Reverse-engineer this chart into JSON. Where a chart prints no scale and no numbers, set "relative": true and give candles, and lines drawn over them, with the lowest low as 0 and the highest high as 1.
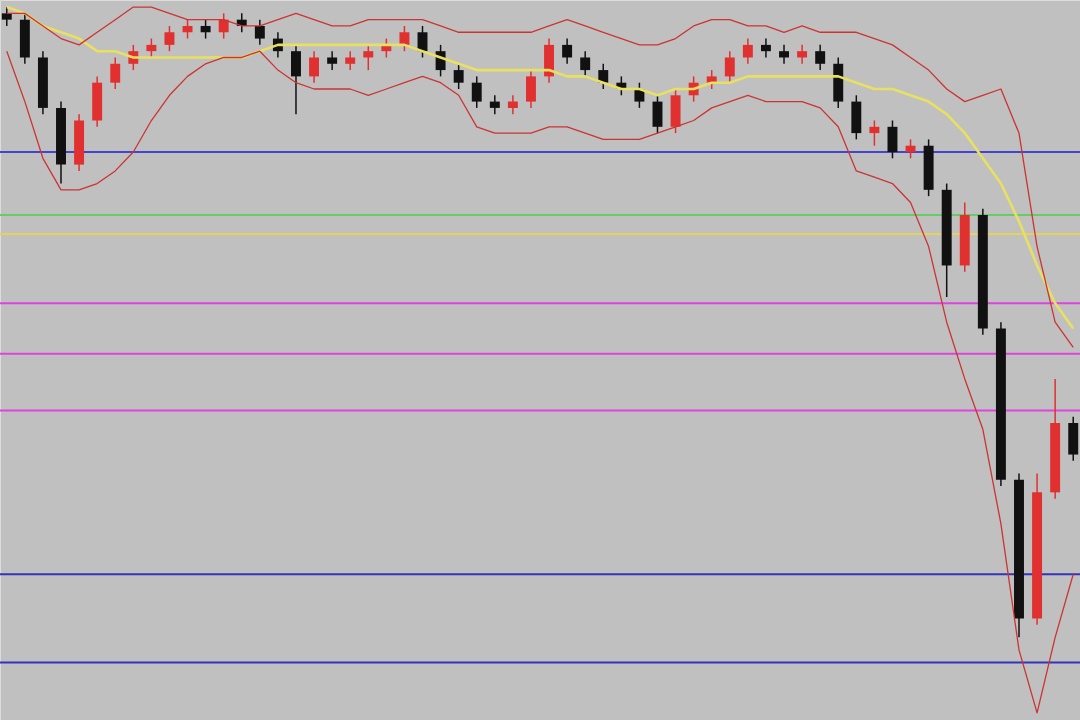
{
  "chart_data": {
    "type": "candlestick",
    "relative": true,
    "categories": [
      null,
      null,
      null,
      null,
      null,
      null,
      null,
      null,
      null,
      null,
      null,
      null,
      null,
      null,
      null,
      null,
      null,
      null,
      null,
      null,
      null,
      null,
      null,
      null,
      null,
      null,
      null,
      null,
      null,
      null,
      null,
      null,
      null,
      null,
      null,
      null,
      null,
      null,
      null,
      null,
      null,
      null,
      null,
      null,
      null,
      null,
      null,
      null,
      null,
      null,
      null,
      null,
      null,
      null,
      null,
      null,
      null,
      null,
      null,
      null
    ],
    "ohlc": [
      [
        0.99,
        1.0,
        0.97,
        0.98
      ],
      [
        0.98,
        0.99,
        0.91,
        0.92
      ],
      [
        0.92,
        0.93,
        0.83,
        0.84
      ],
      [
        0.84,
        0.85,
        0.72,
        0.75
      ],
      [
        0.75,
        0.83,
        0.74,
        0.82
      ],
      [
        0.82,
        0.89,
        0.81,
        0.88
      ],
      [
        0.88,
        0.92,
        0.87,
        0.91
      ],
      [
        0.91,
        0.94,
        0.9,
        0.93
      ],
      [
        0.93,
        0.95,
        0.92,
        0.94
      ],
      [
        0.94,
        0.97,
        0.93,
        0.96
      ],
      [
        0.96,
        0.98,
        0.95,
        0.97
      ],
      [
        0.97,
        0.98,
        0.95,
        0.96
      ],
      [
        0.96,
        0.99,
        0.95,
        0.98
      ],
      [
        0.98,
        0.99,
        0.96,
        0.97
      ],
      [
        0.97,
        0.98,
        0.94,
        0.95
      ],
      [
        0.95,
        0.96,
        0.92,
        0.93
      ],
      [
        0.93,
        0.94,
        0.83,
        0.89
      ],
      [
        0.89,
        0.93,
        0.88,
        0.92
      ],
      [
        0.92,
        0.93,
        0.9,
        0.91
      ],
      [
        0.91,
        0.93,
        0.9,
        0.92
      ],
      [
        0.92,
        0.94,
        0.9,
        0.93
      ],
      [
        0.93,
        0.95,
        0.92,
        0.94
      ],
      [
        0.94,
        0.97,
        0.93,
        0.96
      ],
      [
        0.96,
        0.97,
        0.92,
        0.93
      ],
      [
        0.93,
        0.94,
        0.89,
        0.9
      ],
      [
        0.9,
        0.91,
        0.87,
        0.88
      ],
      [
        0.88,
        0.89,
        0.84,
        0.85
      ],
      [
        0.85,
        0.86,
        0.83,
        0.84
      ],
      [
        0.84,
        0.86,
        0.83,
        0.85
      ],
      [
        0.85,
        0.9,
        0.84,
        0.89
      ],
      [
        0.89,
        0.95,
        0.88,
        0.94
      ],
      [
        0.94,
        0.95,
        0.91,
        0.92
      ],
      [
        0.92,
        0.93,
        0.89,
        0.9
      ],
      [
        0.9,
        0.91,
        0.87,
        0.88
      ],
      [
        0.88,
        0.89,
        0.86,
        0.87
      ],
      [
        0.87,
        0.88,
        0.84,
        0.85
      ],
      [
        0.85,
        0.86,
        0.8,
        0.81
      ],
      [
        0.81,
        0.87,
        0.8,
        0.86
      ],
      [
        0.86,
        0.89,
        0.85,
        0.88
      ],
      [
        0.88,
        0.9,
        0.87,
        0.89
      ],
      [
        0.89,
        0.93,
        0.88,
        0.92
      ],
      [
        0.92,
        0.95,
        0.91,
        0.94
      ],
      [
        0.94,
        0.95,
        0.92,
        0.93
      ],
      [
        0.93,
        0.94,
        0.91,
        0.92
      ],
      [
        0.92,
        0.94,
        0.91,
        0.93
      ],
      [
        0.93,
        0.94,
        0.9,
        0.91
      ],
      [
        0.91,
        0.92,
        0.84,
        0.85
      ],
      [
        0.85,
        0.86,
        0.79,
        0.8
      ],
      [
        0.8,
        0.82,
        0.78,
        0.81
      ],
      [
        0.81,
        0.82,
        0.76,
        0.77
      ],
      [
        0.77,
        0.79,
        0.76,
        0.78
      ],
      [
        0.78,
        0.79,
        0.7,
        0.71
      ],
      [
        0.71,
        0.72,
        0.54,
        0.59
      ],
      [
        0.59,
        0.69,
        0.58,
        0.67
      ],
      [
        0.67,
        0.68,
        0.48,
        0.49
      ],
      [
        0.49,
        0.5,
        0.24,
        0.25
      ],
      [
        0.25,
        0.26,
        0.0,
        0.03
      ],
      [
        0.03,
        0.26,
        0.02,
        0.23
      ],
      [
        0.23,
        0.41,
        0.22,
        0.34
      ],
      [
        0.34,
        0.35,
        0.28,
        0.29
      ]
    ],
    "colors": [
      "#111111",
      "#111111",
      "#111111",
      "#111111",
      "#e03030",
      "#e03030",
      "#e03030",
      "#e03030",
      "#e03030",
      "#e03030",
      "#e03030",
      "#111111",
      "#e03030",
      "#111111",
      "#111111",
      "#111111",
      "#111111",
      "#e03030",
      "#111111",
      "#e03030",
      "#e03030",
      "#e03030",
      "#e03030",
      "#111111",
      "#111111",
      "#111111",
      "#111111",
      "#111111",
      "#e03030",
      "#e03030",
      "#e03030",
      "#111111",
      "#111111",
      "#111111",
      "#111111",
      "#111111",
      "#111111",
      "#e03030",
      "#e03030",
      "#e03030",
      "#e03030",
      "#e03030",
      "#111111",
      "#111111",
      "#e03030",
      "#111111",
      "#111111",
      "#111111",
      "#e03030",
      "#111111",
      "#e03030",
      "#111111",
      "#111111",
      "#e03030",
      "#111111",
      "#111111",
      "#111111",
      "#e03030",
      "#e03030",
      "#111111"
    ],
    "series": [
      {
        "type": "line",
        "color": "#e8e060",
        "values": [
          1.0,
          0.99,
          0.97,
          0.96,
          0.95,
          0.93,
          0.93,
          0.92,
          0.92,
          0.92,
          0.92,
          0.92,
          0.92,
          0.92,
          0.93,
          0.94,
          0.94,
          0.94,
          0.94,
          0.94,
          0.94,
          0.94,
          0.94,
          0.93,
          0.92,
          0.91,
          0.9,
          0.9,
          0.9,
          0.9,
          0.9,
          0.89,
          0.89,
          0.88,
          0.87,
          0.87,
          0.86,
          0.87,
          0.87,
          0.88,
          0.88,
          0.89,
          0.89,
          0.89,
          0.89,
          0.89,
          0.89,
          0.88,
          0.87,
          0.87,
          0.86,
          0.85,
          0.83,
          0.8,
          0.76,
          0.72,
          0.66,
          0.59,
          0.53,
          0.49
        ]
      },
      {
        "type": "line",
        "color": "#cc3333",
        "values": [
          0.99,
          0.99,
          0.97,
          0.95,
          0.94,
          0.96,
          0.98,
          1.0,
          1.0,
          0.99,
          0.98,
          0.98,
          0.98,
          0.97,
          0.97,
          0.98,
          0.99,
          0.98,
          0.97,
          0.97,
          0.98,
          0.98,
          0.98,
          0.98,
          0.97,
          0.96,
          0.96,
          0.96,
          0.96,
          0.96,
          0.97,
          0.98,
          0.97,
          0.96,
          0.95,
          0.94,
          0.94,
          0.95,
          0.97,
          0.98,
          0.98,
          0.97,
          0.97,
          0.96,
          0.97,
          0.96,
          0.96,
          0.96,
          0.95,
          0.94,
          0.92,
          0.9,
          0.87,
          0.85,
          0.86,
          0.87,
          0.8,
          0.62,
          0.5,
          0.46
        ]
      },
      {
        "type": "line",
        "color": "#cc3333",
        "values": [
          0.93,
          0.85,
          0.76,
          0.71,
          0.71,
          0.72,
          0.74,
          0.77,
          0.82,
          0.86,
          0.89,
          0.91,
          0.92,
          0.92,
          0.93,
          0.9,
          0.88,
          0.87,
          0.87,
          0.87,
          0.86,
          0.87,
          0.88,
          0.89,
          0.88,
          0.86,
          0.81,
          0.8,
          0.8,
          0.8,
          0.81,
          0.81,
          0.8,
          0.79,
          0.79,
          0.79,
          0.8,
          0.81,
          0.82,
          0.84,
          0.85,
          0.86,
          0.85,
          0.85,
          0.85,
          0.84,
          0.81,
          0.74,
          0.73,
          0.72,
          0.69,
          0.62,
          0.5,
          0.41,
          0.33,
          0.18,
          -0.02,
          -0.12,
          0.0,
          0.1
        ]
      }
    ],
    "ref_lines": [
      {
        "axis": "y",
        "value": 0.77,
        "color": "#4444cc"
      },
      {
        "axis": "y",
        "value": 0.67,
        "color": "#66cc66"
      },
      {
        "axis": "y",
        "value": 0.64,
        "color": "#e6d25a"
      },
      {
        "axis": "y",
        "value": 0.53,
        "color": "#dd44dd"
      },
      {
        "axis": "y",
        "value": 0.45,
        "color": "#dd44dd"
      },
      {
        "axis": "y",
        "value": 0.36,
        "color": "#dd44dd"
      },
      {
        "axis": "y",
        "value": 0.1,
        "color": "#3333bb"
      },
      {
        "axis": "y",
        "value": -0.04,
        "color": "#3333bb"
      }
    ]
  }
}
